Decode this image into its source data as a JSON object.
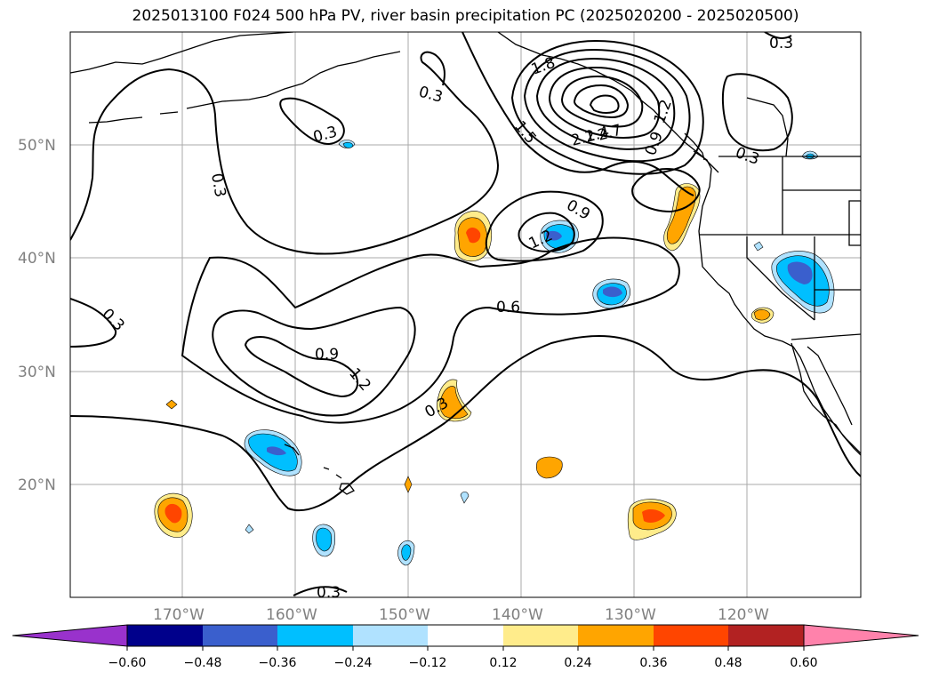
{
  "title": "2025013100 F024 500 hPa PV, river basin precipitation PC (2025020200 - 2025020500)",
  "map": {
    "lat_labels": [
      "50°N",
      "40°N",
      "30°N",
      "20°N"
    ],
    "lon_labels": [
      "170°W",
      "160°W",
      "150°W",
      "140°W",
      "130°W",
      "120°W"
    ],
    "gridline_color": "#aaaaaa",
    "contour_labels": [
      "0.3",
      "0.3",
      "0.3",
      "0.3",
      "0.3",
      "0.3",
      "0.3",
      "0.3",
      "0.6",
      "0.9",
      "0.9",
      "1.2",
      "1.2",
      "1.2",
      "1.5",
      "1.8",
      "2.1",
      "2.4",
      "2.7",
      "0.9"
    ]
  },
  "colorbar": {
    "ticks": [
      "−0.60",
      "−0.48",
      "−0.36",
      "−0.24",
      "−0.12",
      "0.12",
      "0.24",
      "0.36",
      "0.48",
      "0.60"
    ],
    "colors": {
      "under": "#9932cc",
      "b1": "#00008b",
      "b2": "#3a5fcd",
      "b3": "#00bfff",
      "b4": "#b0e2ff",
      "b5": "#ffffff",
      "b6": "#ffec8b",
      "b7": "#ffa500",
      "b8": "#ff4500",
      "b9": "#b22222",
      "over": "#ff82ab"
    }
  }
}
